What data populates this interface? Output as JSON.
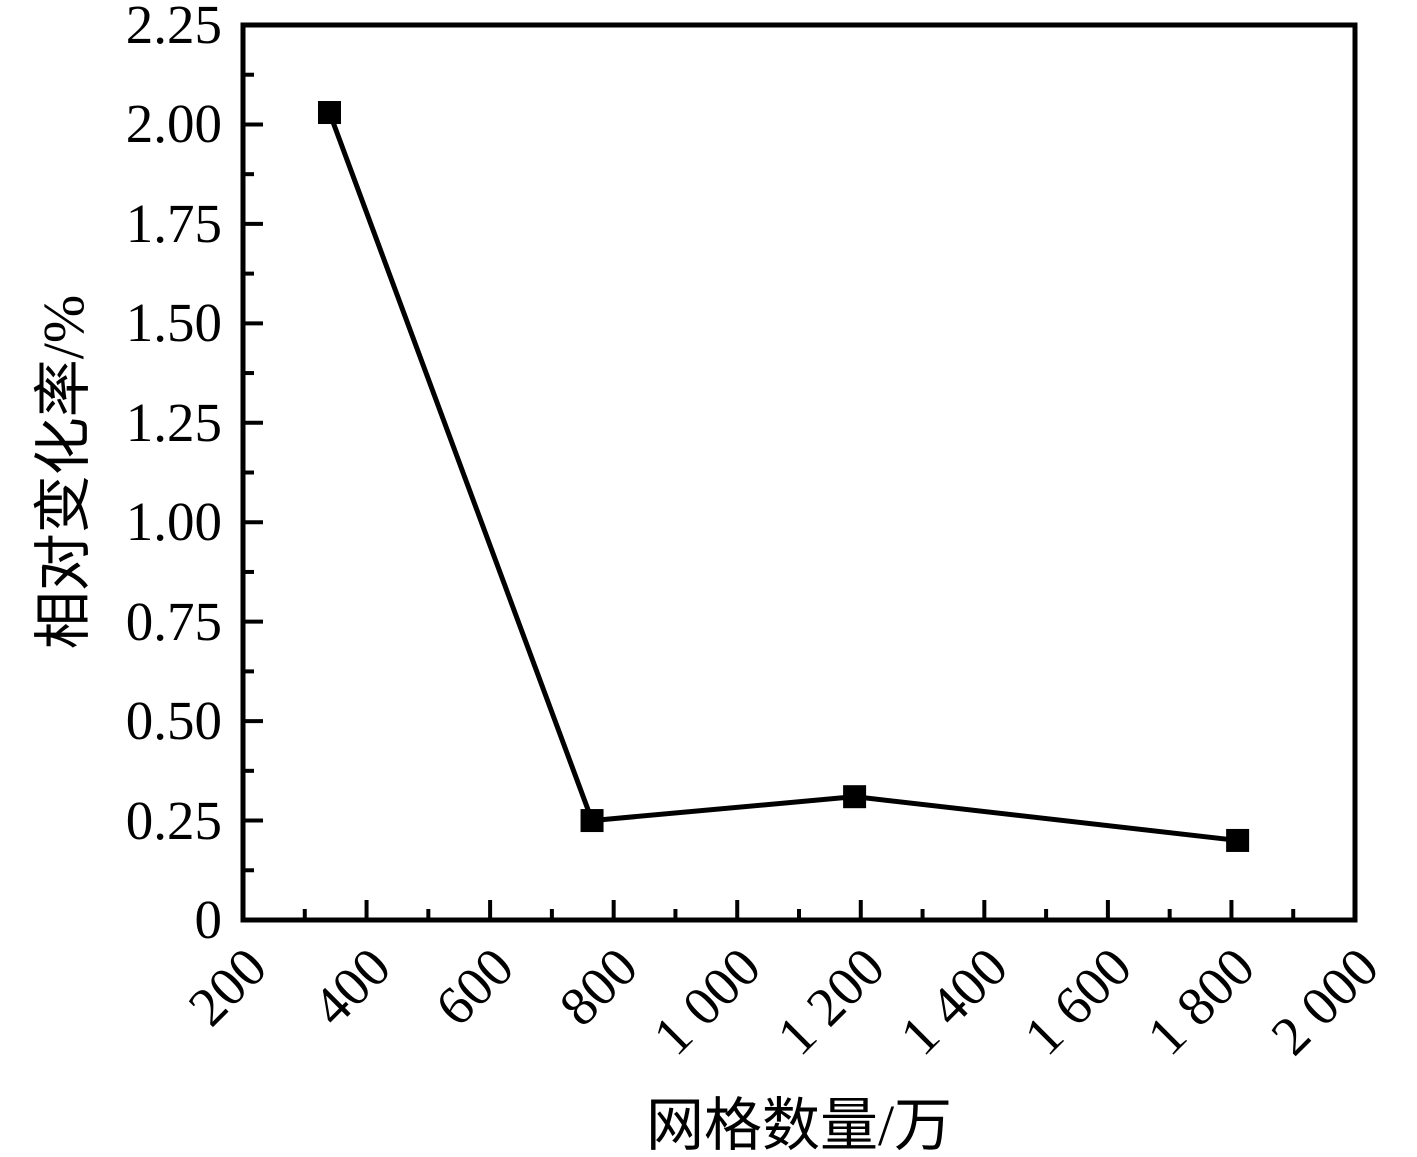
{
  "figure": {
    "background_color": "#ffffff",
    "ink_color": "#000000"
  },
  "chart_data": {
    "type": "line",
    "title": "",
    "xlabel": "网格数量/万",
    "ylabel": "相对变化率/%",
    "xlim": [
      200,
      2000
    ],
    "ylim": [
      0,
      2.25
    ],
    "grid": false,
    "legend": null,
    "marker": "filled-square",
    "line_color": "#000000",
    "marker_color": "#000000",
    "series": [
      {
        "name": "相对变化率",
        "x": [
          340,
          765,
          1190,
          1810
        ],
        "y": [
          2.03,
          0.25,
          0.31,
          0.2
        ]
      }
    ],
    "x_axis": {
      "major_ticks": [
        200,
        400,
        600,
        800,
        1000,
        1200,
        1400,
        1600,
        1800,
        2000
      ],
      "tick_labels": [
        "200",
        "400",
        "600",
        "800",
        "1 000",
        "1 200",
        "1 400",
        "1 600",
        "1 800",
        "2 000"
      ],
      "minor_ticks": [
        300,
        500,
        700,
        900,
        1100,
        1300,
        1500,
        1700,
        1900
      ],
      "tick_label_rotation_deg": 45
    },
    "y_axis": {
      "major_ticks": [
        0,
        0.25,
        0.5,
        0.75,
        1.0,
        1.25,
        1.5,
        1.75,
        2.0,
        2.25
      ],
      "tick_labels": [
        "0",
        "0.25",
        "0.50",
        "0.75",
        "1.00",
        "1.25",
        "1.50",
        "1.75",
        "2.00",
        "2.25"
      ],
      "minor_ticks": [
        0.125,
        0.375,
        0.625,
        0.875,
        1.125,
        1.375,
        1.625,
        1.875,
        2.125
      ]
    }
  }
}
